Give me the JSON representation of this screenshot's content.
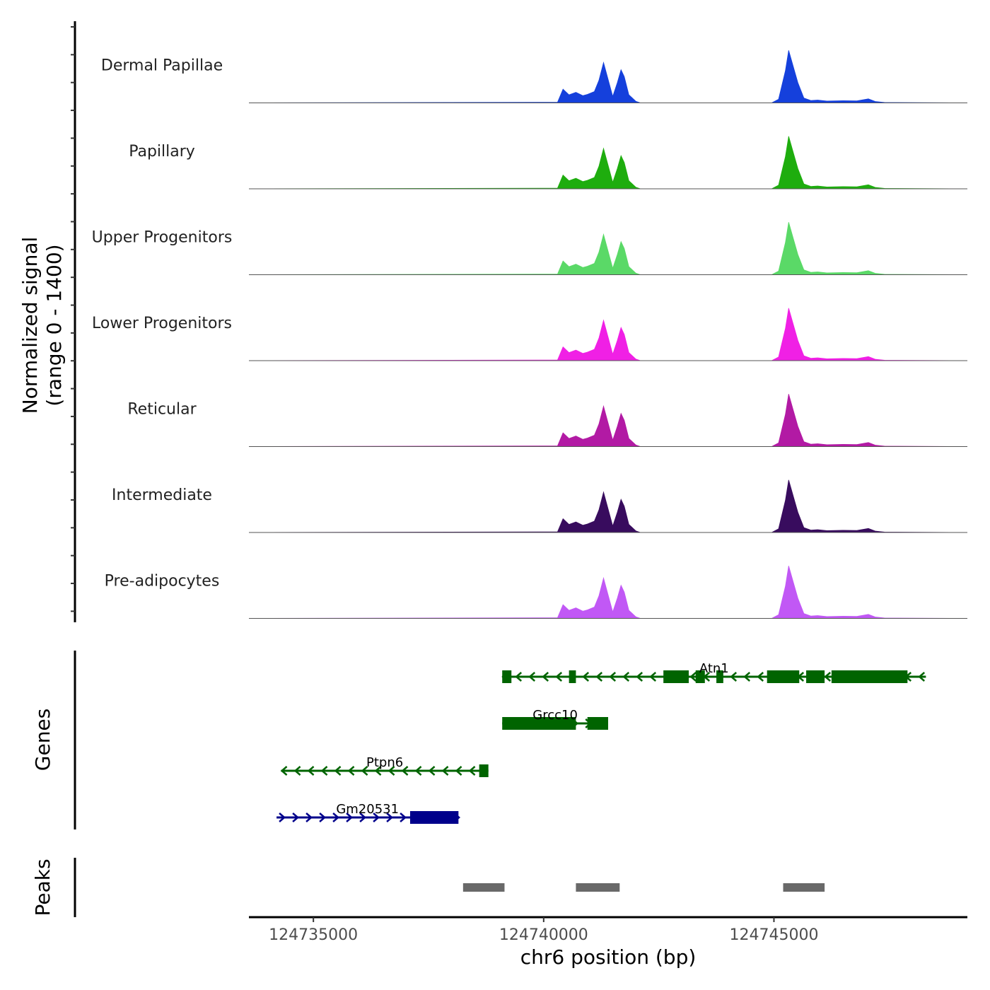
{
  "chart_data": {
    "type": "area",
    "title": "",
    "ylabel_line1": "Normalized signal",
    "ylabel_line2": "(range 0 - 1400)",
    "xlabel": "chr6 position (bp)",
    "xlim": [
      124733600,
      124749200
    ],
    "ylim": [
      0,
      1400
    ],
    "x_ticks": [
      124735000,
      124740000,
      124745000
    ],
    "x_tick_labels": [
      "124735000",
      "124740000",
      "124745000"
    ],
    "series": [
      {
        "name": "Dermal Papillae",
        "color": "#1540DC",
        "x": [
          124733600,
          124740300,
          124740420,
          124740550,
          124740700,
          124740850,
          124740950,
          124741100,
          124741200,
          124741300,
          124741400,
          124741500,
          124741600,
          124741680,
          124741750,
          124741850,
          124742000,
          124742100,
          124744950,
          124745100,
          124745250,
          124745320,
          124745420,
          124745520,
          124745650,
          124745800,
          124745950,
          124746150,
          124746500,
          124746800,
          124747050,
          124747200,
          124747400,
          124749200
        ],
        "values": [
          0,
          15,
          340,
          200,
          260,
          180,
          210,
          280,
          560,
          1000,
          580,
          160,
          500,
          820,
          650,
          200,
          40,
          0,
          0,
          90,
          800,
          1300,
          900,
          500,
          120,
          60,
          70,
          45,
          55,
          50,
          100,
          35,
          10,
          0
        ]
      },
      {
        "name": "Papillary",
        "color": "#1EAD0E",
        "x": [
          124733600,
          124740300,
          124740420,
          124740550,
          124740700,
          124740850,
          124740950,
          124741100,
          124741200,
          124741300,
          124741400,
          124741500,
          124741600,
          124741680,
          124741750,
          124741850,
          124742000,
          124742100,
          124744950,
          124745100,
          124745250,
          124745320,
          124745420,
          124745520,
          124745650,
          124745800,
          124745950,
          124746150,
          124746500,
          124746800,
          124747050,
          124747200,
          124747400,
          124749200
        ],
        "values": [
          0,
          15,
          340,
          200,
          260,
          180,
          210,
          280,
          560,
          1000,
          580,
          160,
          500,
          820,
          650,
          200,
          40,
          0,
          0,
          90,
          800,
          1300,
          900,
          500,
          120,
          60,
          70,
          45,
          55,
          50,
          100,
          35,
          10,
          0
        ]
      },
      {
        "name": "Upper Progenitors",
        "color": "#5AD967",
        "x": [
          124733600,
          124740300,
          124740420,
          124740550,
          124740700,
          124740850,
          124740950,
          124741100,
          124741200,
          124741300,
          124741400,
          124741500,
          124741600,
          124741680,
          124741750,
          124741850,
          124742000,
          124742100,
          124744950,
          124745100,
          124745250,
          124745320,
          124745420,
          124745520,
          124745650,
          124745800,
          124745950,
          124746150,
          124746500,
          124746800,
          124747050,
          124747200,
          124747400,
          124749200
        ],
        "values": [
          0,
          15,
          340,
          200,
          260,
          180,
          210,
          280,
          560,
          1000,
          580,
          160,
          500,
          820,
          650,
          200,
          40,
          0,
          0,
          90,
          800,
          1300,
          900,
          500,
          120,
          60,
          70,
          45,
          55,
          50,
          100,
          35,
          10,
          0
        ]
      },
      {
        "name": "Lower Progenitors",
        "color": "#F020E5",
        "x": [
          124733600,
          124740300,
          124740420,
          124740550,
          124740700,
          124740850,
          124740950,
          124741100,
          124741200,
          124741300,
          124741400,
          124741500,
          124741600,
          124741680,
          124741750,
          124741850,
          124742000,
          124742100,
          124744950,
          124745100,
          124745250,
          124745320,
          124745420,
          124745520,
          124745650,
          124745800,
          124745950,
          124746150,
          124746500,
          124746800,
          124747050,
          124747200,
          124747400,
          124749200
        ],
        "values": [
          0,
          15,
          340,
          200,
          260,
          180,
          210,
          280,
          560,
          1000,
          580,
          160,
          500,
          820,
          650,
          200,
          40,
          0,
          0,
          90,
          800,
          1300,
          900,
          500,
          120,
          60,
          70,
          45,
          55,
          50,
          100,
          35,
          10,
          0
        ]
      },
      {
        "name": "Reticular",
        "color": "#B21AA4",
        "x": [
          124733600,
          124740300,
          124740420,
          124740550,
          124740700,
          124740850,
          124740950,
          124741100,
          124741200,
          124741300,
          124741400,
          124741500,
          124741600,
          124741680,
          124741750,
          124741850,
          124742000,
          124742100,
          124744950,
          124745100,
          124745250,
          124745320,
          124745420,
          124745520,
          124745650,
          124745800,
          124745950,
          124746150,
          124746500,
          124746800,
          124747050,
          124747200,
          124747400,
          124749200
        ],
        "values": [
          0,
          15,
          340,
          200,
          260,
          180,
          210,
          280,
          560,
          1000,
          580,
          160,
          500,
          820,
          650,
          200,
          40,
          0,
          0,
          90,
          800,
          1300,
          900,
          500,
          120,
          60,
          70,
          45,
          55,
          50,
          100,
          35,
          10,
          0
        ]
      },
      {
        "name": "Intermediate",
        "color": "#380C5E",
        "x": [
          124733600,
          124740300,
          124740420,
          124740550,
          124740700,
          124740850,
          124740950,
          124741100,
          124741200,
          124741300,
          124741400,
          124741500,
          124741600,
          124741680,
          124741750,
          124741850,
          124742000,
          124742100,
          124744950,
          124745100,
          124745250,
          124745320,
          124745420,
          124745520,
          124745650,
          124745800,
          124745950,
          124746150,
          124746500,
          124746800,
          124747050,
          124747200,
          124747400,
          124749200
        ],
        "values": [
          0,
          15,
          340,
          200,
          260,
          180,
          210,
          280,
          560,
          1000,
          580,
          160,
          500,
          820,
          650,
          200,
          40,
          0,
          0,
          90,
          800,
          1300,
          900,
          500,
          120,
          60,
          70,
          45,
          55,
          50,
          100,
          35,
          10,
          0
        ]
      },
      {
        "name": "Pre-adipocytes",
        "color": "#C158F5",
        "x": [
          124733600,
          124740300,
          124740420,
          124740550,
          124740700,
          124740850,
          124740950,
          124741100,
          124741200,
          124741300,
          124741400,
          124741500,
          124741600,
          124741680,
          124741750,
          124741850,
          124742000,
          124742100,
          124744950,
          124745100,
          124745250,
          124745320,
          124745420,
          124745520,
          124745650,
          124745800,
          124745950,
          124746150,
          124746500,
          124746800,
          124747050,
          124747200,
          124747400,
          124749200
        ],
        "values": [
          0,
          15,
          340,
          200,
          260,
          180,
          210,
          280,
          560,
          1000,
          580,
          160,
          500,
          820,
          650,
          200,
          40,
          0,
          0,
          90,
          800,
          1300,
          900,
          500,
          120,
          60,
          70,
          45,
          55,
          50,
          100,
          35,
          10,
          0
        ]
      }
    ],
    "genes_label": "Genes",
    "peaks_label": "Peaks",
    "genes": [
      {
        "name": "Atn1",
        "strand": "-",
        "color": "#006400",
        "start": 124739100,
        "end": 124748300,
        "exons": [
          [
            124739100,
            124739300
          ],
          [
            124740550,
            124740700
          ],
          [
            124742600,
            124743150
          ],
          [
            124743300,
            124743500
          ],
          [
            124743750,
            124743900
          ],
          [
            124744850,
            124745550
          ],
          [
            124745700,
            124746100
          ],
          [
            124746250,
            124747900
          ]
        ]
      },
      {
        "name": "Grcc10",
        "strand": "+",
        "color": "#006400",
        "start": 124739100,
        "end": 124741400,
        "exons": [
          [
            124739100,
            124740700
          ],
          [
            124740950,
            124741400
          ]
        ]
      },
      {
        "name": "Ptpn6",
        "strand": "-",
        "color": "#006400",
        "start": 124734300,
        "end": 124738800,
        "exons": [
          [
            124738600,
            124738800
          ]
        ]
      },
      {
        "name": "Gm20531",
        "strand": "+",
        "color": "#00008B",
        "start": 124734200,
        "end": 124738150,
        "exons": [
          [
            124737100,
            124738150
          ]
        ]
      }
    ],
    "peaks": [
      [
        124738250,
        124739150
      ],
      [
        124740700,
        124741650
      ],
      [
        124745200,
        124746100
      ]
    ]
  }
}
